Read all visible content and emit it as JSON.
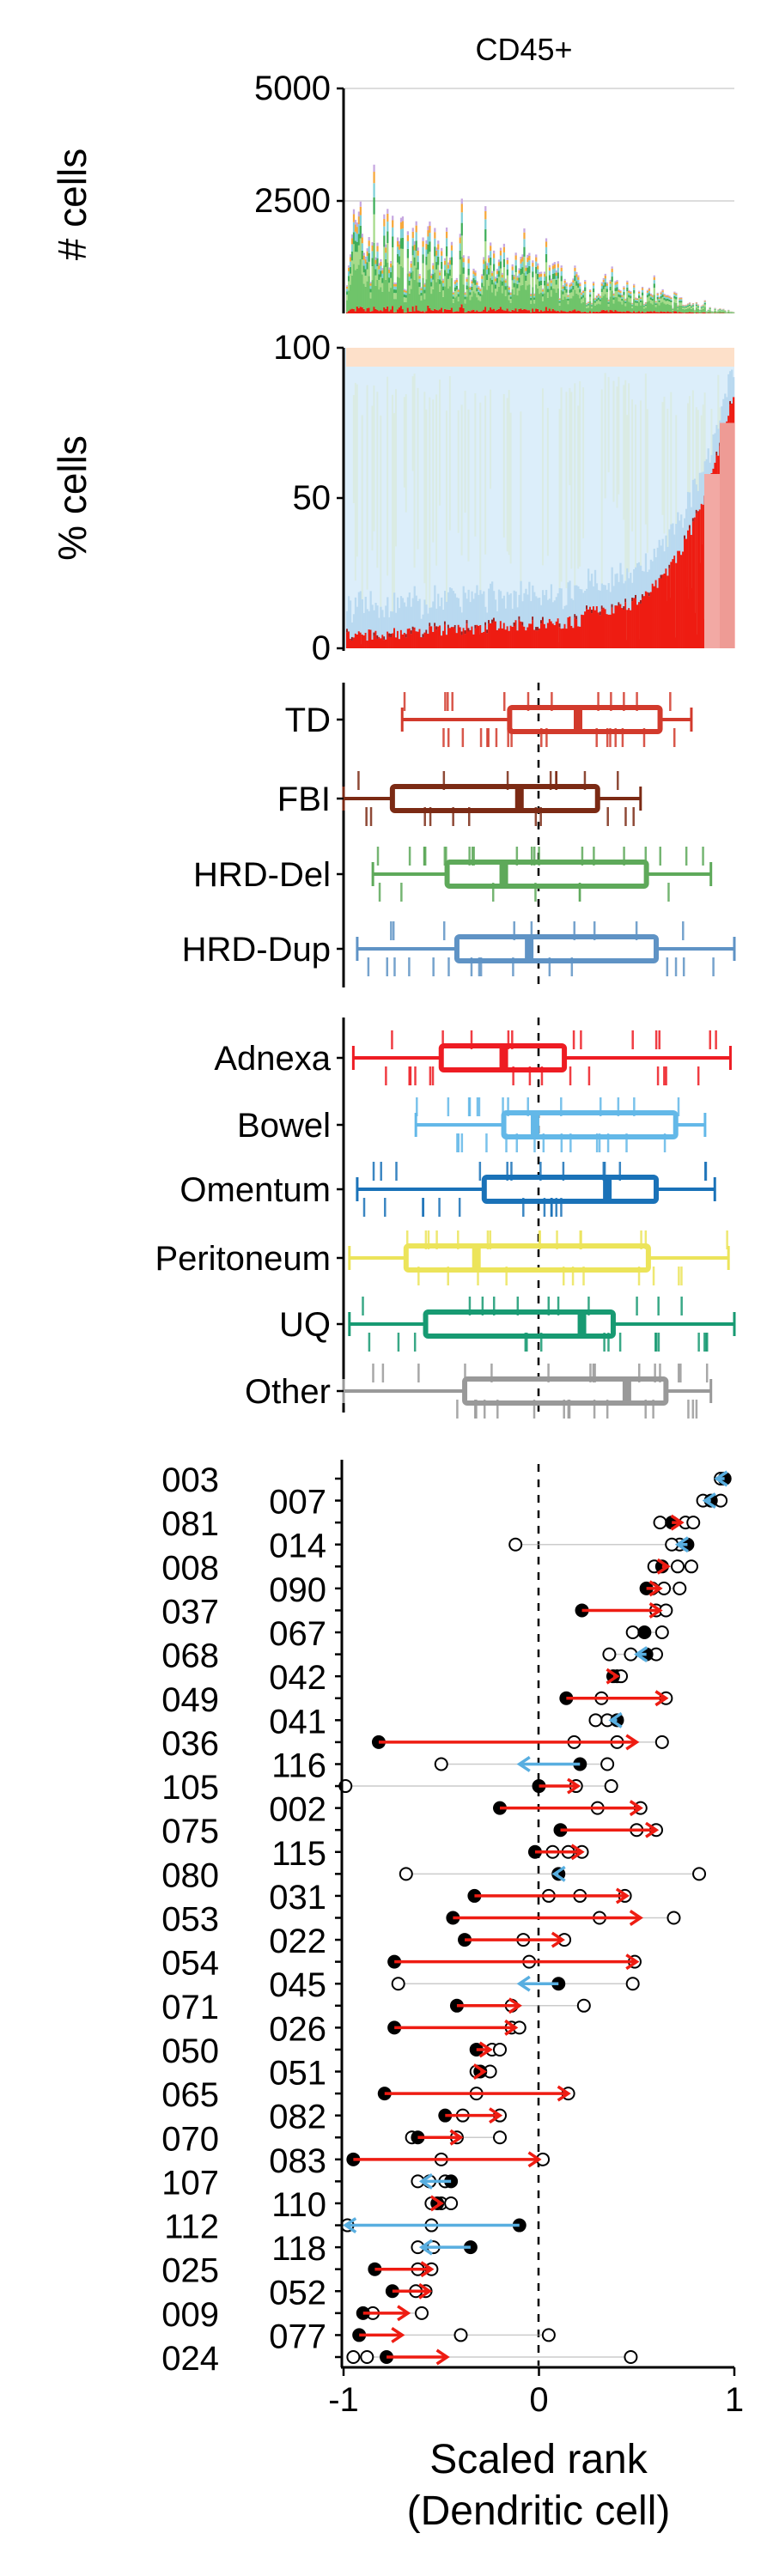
{
  "title": "CD45+",
  "colors": {
    "dendritic": "#ee1c12",
    "td": "#d23a2c",
    "fbi": "#7b2a14",
    "hrd_del": "#5ea95a",
    "hrd_dup": "#5f93c5",
    "adnexa": "#ee1c23",
    "bowel": "#63b8e8",
    "omentum": "#1a72b8",
    "peritoneum": "#ece45a",
    "uq": "#179a72",
    "other": "#999999",
    "arrow_up": "#ee1c12",
    "arrow_down": "#58aee0"
  },
  "chart_data": [
    {
      "type": "bar",
      "stacked": true,
      "ylabel": "# cells",
      "ylim": [
        0,
        5000
      ],
      "yticks": [
        "2500",
        "5000"
      ],
      "grid": true,
      "note": "approx. 230 samples ranked by scaled Dendritic cell fraction"
    },
    {
      "type": "bar",
      "stacked": true,
      "ylabel": "% cells",
      "ylim": [
        0,
        100
      ],
      "yticks": [
        "0",
        "50",
        "100"
      ],
      "note": "per-sample composition; red = Dendritic cell fraction"
    },
    {
      "type": "box",
      "group": "signature",
      "categories": [
        "TD",
        "FBI",
        "HRD-Del",
        "HRD-Dup"
      ],
      "xlim": [
        -1,
        1
      ],
      "boxes": [
        {
          "name": "TD",
          "whisker_lo": -0.7,
          "q1": -0.15,
          "median": 0.2,
          "q3": 0.62,
          "whisker_hi": 0.78
        },
        {
          "name": "FBI",
          "whisker_lo": -1.0,
          "q1": -0.75,
          "median": -0.1,
          "q3": 0.3,
          "whisker_hi": 0.52
        },
        {
          "name": "HRD-Del",
          "whisker_lo": -0.85,
          "q1": -0.47,
          "median": -0.18,
          "q3": 0.55,
          "whisker_hi": 0.88
        },
        {
          "name": "HRD-Dup",
          "whisker_lo": -0.93,
          "q1": -0.42,
          "median": -0.05,
          "q3": 0.6,
          "whisker_hi": 1.0
        }
      ]
    },
    {
      "type": "box",
      "group": "site",
      "categories": [
        "Adnexa",
        "Bowel",
        "Omentum",
        "Peritoneum",
        "UQ",
        "Other"
      ],
      "xlim": [
        -1,
        1
      ],
      "boxes": [
        {
          "name": "Adnexa",
          "whisker_lo": -0.95,
          "q1": -0.5,
          "median": -0.18,
          "q3": 0.13,
          "whisker_hi": 0.98
        },
        {
          "name": "Bowel",
          "whisker_lo": -0.63,
          "q1": -0.18,
          "median": -0.02,
          "q3": 0.7,
          "whisker_hi": 0.85
        },
        {
          "name": "Omentum",
          "whisker_lo": -0.93,
          "q1": -0.28,
          "median": 0.35,
          "q3": 0.6,
          "whisker_hi": 0.9
        },
        {
          "name": "Peritoneum",
          "whisker_lo": -0.97,
          "q1": -0.68,
          "median": -0.32,
          "q3": 0.56,
          "whisker_hi": 0.97
        },
        {
          "name": "UQ",
          "whisker_lo": -0.97,
          "q1": -0.58,
          "median": 0.22,
          "q3": 0.38,
          "whisker_hi": 1.0
        },
        {
          "name": "Other",
          "whisker_lo": -1.0,
          "q1": -0.38,
          "median": 0.45,
          "q3": 0.65,
          "whisker_hi": 0.88
        }
      ]
    },
    {
      "type": "scatter",
      "group": "patients",
      "xlabel": "Scaled rank\n(Dendritic cell)",
      "xlim": [
        -1,
        1
      ],
      "xticks": [
        "-1",
        "0",
        "1"
      ],
      "patients": [
        {
          "id": "003",
          "filled": 0.95,
          "mean": 0.91,
          "open": [
            0.95,
            0.93
          ]
        },
        {
          "id": "007",
          "filled": 0.88,
          "mean": 0.85,
          "open": [
            0.84,
            0.93
          ]
        },
        {
          "id": "081",
          "filled": 0.68,
          "mean": 0.73,
          "open": [
            0.75,
            0.79,
            0.62
          ]
        },
        {
          "id": "014",
          "filled": 0.76,
          "mean": 0.71,
          "open": [
            0.72,
            0.68,
            -0.12
          ]
        },
        {
          "id": "008",
          "filled": 0.63,
          "mean": 0.66,
          "open": [
            0.71,
            0.78,
            0.59
          ]
        },
        {
          "id": "090",
          "filled": 0.55,
          "mean": 0.62,
          "open": [
            0.64,
            0.72,
            0.58
          ]
        },
        {
          "id": "037",
          "filled": 0.22,
          "mean": 0.62,
          "open": [
            0.6,
            0.65
          ]
        },
        {
          "id": "067",
          "filled": 0.54,
          "mean": 0.55,
          "open": [
            0.63,
            0.48
          ]
        },
        {
          "id": "068",
          "filled": 0.55,
          "mean": 0.5,
          "open": [
            0.6,
            0.36,
            0.47
          ]
        },
        {
          "id": "042",
          "filled": 0.38,
          "mean": 0.4,
          "open": [
            0.4,
            0.42
          ]
        },
        {
          "id": "049",
          "filled": 0.14,
          "mean": 0.65,
          "open": [
            0.65,
            0.32
          ]
        },
        {
          "id": "041",
          "filled": 0.4,
          "mean": 0.37,
          "open": [
            0.35,
            0.29
          ]
        },
        {
          "id": "036",
          "filled": -0.82,
          "mean": 0.5,
          "open": [
            0.18,
            0.4,
            0.63
          ]
        },
        {
          "id": "116",
          "filled": 0.21,
          "mean": -0.1,
          "open": [
            -0.5,
            0.35
          ]
        },
        {
          "id": "105",
          "filled": 0.0,
          "mean": 0.2,
          "open": [
            -0.99,
            0.19,
            0.37
          ]
        },
        {
          "id": "002",
          "filled": -0.2,
          "mean": 0.52,
          "open": [
            0.52,
            0.3
          ]
        },
        {
          "id": "075",
          "filled": 0.11,
          "mean": 0.6,
          "open": [
            0.6,
            0.5
          ]
        },
        {
          "id": "115",
          "filled": -0.02,
          "mean": 0.22,
          "open": [
            0.22,
            0.15,
            0.07
          ]
        },
        {
          "id": "080",
          "filled": 0.1,
          "mean": 0.08,
          "open": [
            -0.68,
            0.82
          ]
        },
        {
          "id": "031",
          "filled": -0.33,
          "mean": 0.45,
          "open": [
            0.44,
            0.21,
            0.05
          ]
        },
        {
          "id": "053",
          "filled": -0.44,
          "mean": 0.52,
          "open": [
            0.31,
            0.69
          ]
        },
        {
          "id": "022",
          "filled": -0.38,
          "mean": 0.12,
          "open": [
            0.13,
            -0.08
          ]
        },
        {
          "id": "054",
          "filled": -0.74,
          "mean": 0.5,
          "open": [
            0.49,
            -0.05
          ]
        },
        {
          "id": "045",
          "filled": 0.1,
          "mean": -0.1,
          "open": [
            0.48,
            -0.72
          ]
        },
        {
          "id": "071",
          "filled": -0.42,
          "mean": -0.1,
          "open": [
            0.23,
            -0.14
          ]
        },
        {
          "id": "026",
          "filled": -0.74,
          "mean": -0.12,
          "open": [
            -0.14,
            -0.1
          ]
        },
        {
          "id": "050",
          "filled": -0.32,
          "mean": -0.25,
          "open": [
            -0.24,
            -0.2
          ]
        },
        {
          "id": "051",
          "filled": -0.3,
          "mean": -0.28,
          "open": [
            -0.32,
            -0.25
          ]
        },
        {
          "id": "065",
          "filled": -0.79,
          "mean": 0.15,
          "open": [
            0.15,
            -0.32
          ]
        },
        {
          "id": "082",
          "filled": -0.48,
          "mean": -0.2,
          "open": [
            -0.2,
            -0.39
          ]
        },
        {
          "id": "070",
          "filled": -0.62,
          "mean": -0.4,
          "open": [
            -0.2,
            -0.65,
            -0.42
          ]
        },
        {
          "id": "083",
          "filled": -0.95,
          "mean": 0.0,
          "open": [
            0.02,
            -0.5
          ]
        },
        {
          "id": "107",
          "filled": -0.45,
          "mean": -0.6,
          "open": [
            -0.56,
            -0.62,
            -0.48
          ]
        },
        {
          "id": "110",
          "filled": -0.52,
          "mean": -0.5,
          "open": [
            -0.5,
            -0.55,
            -0.45
          ]
        },
        {
          "id": "112",
          "filled": -0.1,
          "mean": -0.99,
          "open": [
            -0.98,
            -0.55
          ]
        },
        {
          "id": "118",
          "filled": -0.35,
          "mean": -0.6,
          "open": [
            -0.54,
            -0.62
          ]
        },
        {
          "id": "025",
          "filled": -0.84,
          "mean": -0.55,
          "open": [
            -0.55,
            -0.62
          ]
        },
        {
          "id": "052",
          "filled": -0.75,
          "mean": -0.56,
          "open": [
            -0.58,
            -0.63
          ]
        },
        {
          "id": "009",
          "filled": -0.9,
          "mean": -0.67,
          "open": [
            -0.85,
            -0.6
          ]
        },
        {
          "id": "077",
          "filled": -0.92,
          "mean": -0.7,
          "open": [
            -0.4,
            0.05
          ]
        },
        {
          "id": "024",
          "filled": -0.78,
          "mean": -0.47,
          "open": [
            -0.95,
            -0.88,
            0.47
          ]
        }
      ]
    }
  ]
}
